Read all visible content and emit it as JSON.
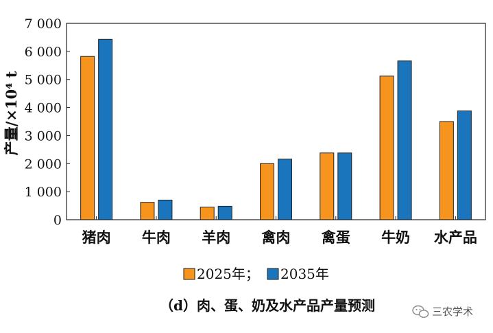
{
  "chart_data": {
    "type": "bar",
    "categories": [
      "猪肉",
      "牛肉",
      "羊肉",
      "禽肉",
      "禽蛋",
      "牛奶",
      "水产品"
    ],
    "series": [
      {
        "name": "2025年；",
        "color": "#f7941d",
        "values": [
          5820,
          620,
          450,
          2000,
          2380,
          5120,
          3500
        ]
      },
      {
        "name": "2035年",
        "color": "#1b75bc",
        "values": [
          6430,
          700,
          480,
          2160,
          2380,
          5660,
          3880
        ]
      }
    ],
    "yticks": [
      {
        "value": 0,
        "label": "0"
      },
      {
        "value": 1000,
        "label": "1 000"
      },
      {
        "value": 2000,
        "label": "2 000"
      },
      {
        "value": 3000,
        "label": "3 000"
      },
      {
        "value": 4000,
        "label": "4 000"
      },
      {
        "value": 5000,
        "label": "5 000"
      },
      {
        "value": 6000,
        "label": "6 000"
      },
      {
        "value": 7000,
        "label": "7 000"
      }
    ],
    "ylim": [
      0,
      7000
    ],
    "ylabel": "产量/×10⁴ t",
    "xlabel": "",
    "grid": false,
    "legend_position": "bottom"
  },
  "caption": "（d）肉、蛋、奶及水产品产量预测",
  "watermark": {
    "icon": "wechat-icon",
    "text": "三农学术"
  }
}
